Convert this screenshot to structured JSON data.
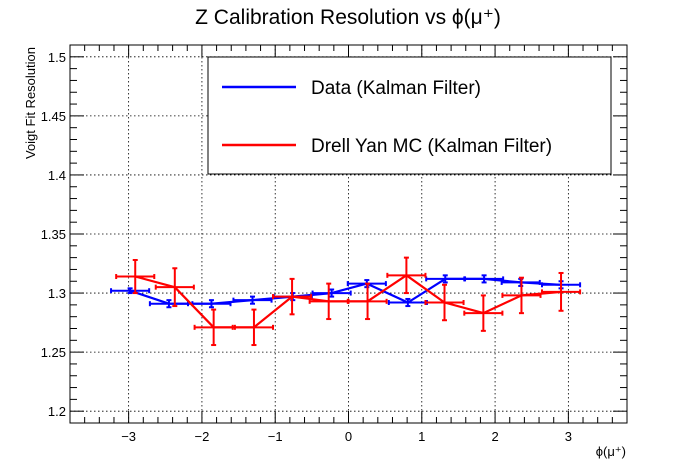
{
  "chart_data": {
    "type": "line",
    "title": "Z Calibration Resolution vs ϕ(μ⁺)",
    "xlabel": "ϕ(μ⁺)",
    "ylabel": "Voigt Fit Resolution",
    "xlim": [
      -3.8,
      3.8
    ],
    "ylim": [
      1.19,
      1.51
    ],
    "xticks": [
      -3,
      -2,
      -1,
      0,
      1,
      2,
      3
    ],
    "xtick_labels": [
      "−3",
      "−2",
      "−1",
      "0",
      "1",
      "2",
      "3"
    ],
    "yticks": [
      1.2,
      1.25,
      1.3,
      1.35,
      1.4,
      1.45,
      1.5
    ],
    "ytick_labels": [
      "1.2",
      "1.25",
      "1.3",
      "1.35",
      "1.4",
      "1.45",
      "1.5"
    ],
    "grid": true,
    "legend_position": "top-right",
    "series": [
      {
        "name": "Data (Kalman Filter)",
        "color": "#0000ff",
        "x": [
          -2.98,
          -2.45,
          -1.87,
          -1.31,
          -0.76,
          -0.23,
          0.25,
          0.81,
          1.32,
          1.85,
          2.35,
          2.9
        ],
        "xerr": [
          0.26,
          0.26,
          0.26,
          0.26,
          0.26,
          0.26,
          0.26,
          0.26,
          0.26,
          0.26,
          0.26,
          0.26
        ],
        "y": [
          1.302,
          1.291,
          1.291,
          1.294,
          1.297,
          1.3,
          1.308,
          1.292,
          1.312,
          1.312,
          1.309,
          1.307
        ],
        "yerr": [
          0.002,
          0.003,
          0.003,
          0.003,
          0.003,
          0.003,
          0.003,
          0.003,
          0.003,
          0.003,
          0.003,
          0.003
        ]
      },
      {
        "name": "Drell Yan MC (Kalman Filter)",
        "color": "#ff0000",
        "x": [
          -2.91,
          -2.37,
          -1.84,
          -1.29,
          -0.77,
          -0.27,
          0.26,
          0.79,
          1.31,
          1.84,
          2.36,
          2.9
        ],
        "xerr": [
          0.26,
          0.26,
          0.26,
          0.26,
          0.26,
          0.26,
          0.26,
          0.26,
          0.26,
          0.26,
          0.26,
          0.26
        ],
        "y": [
          1.314,
          1.305,
          1.271,
          1.271,
          1.297,
          1.293,
          1.293,
          1.315,
          1.292,
          1.283,
          1.298,
          1.301
        ],
        "yerr": [
          0.014,
          0.016,
          0.015,
          0.015,
          0.015,
          0.015,
          0.015,
          0.015,
          0.015,
          0.015,
          0.015,
          0.016
        ]
      }
    ]
  }
}
